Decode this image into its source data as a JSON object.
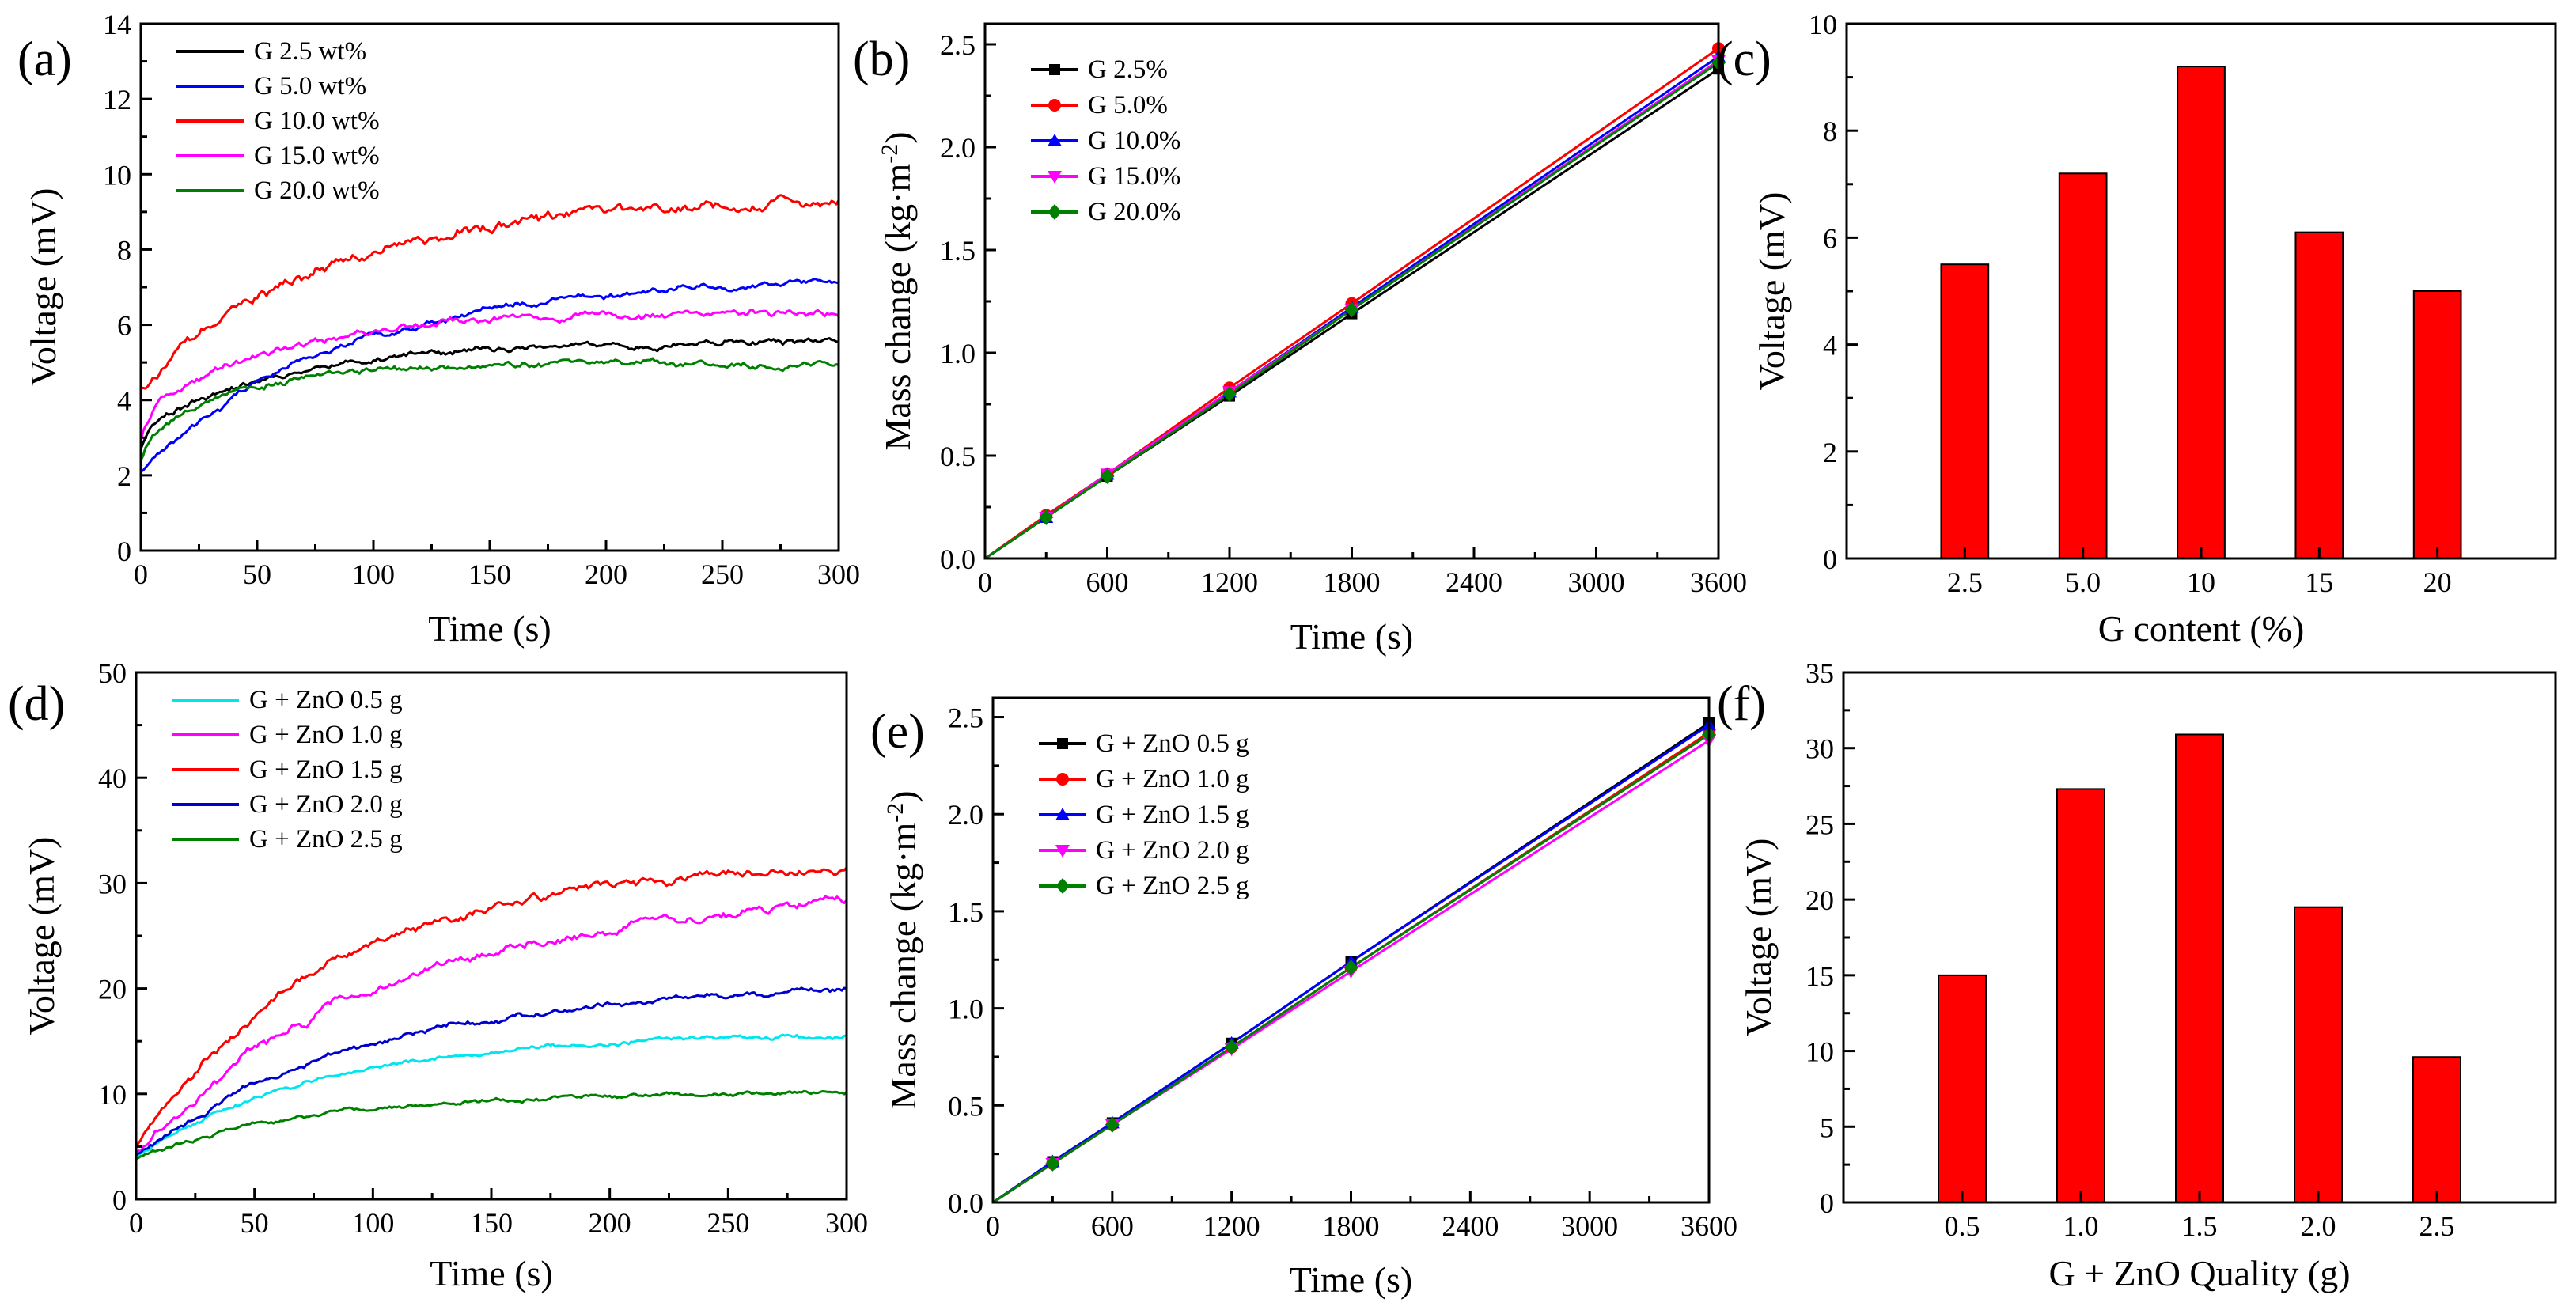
{
  "chart_data": [
    {
      "id": "a",
      "panel_label": "(a)",
      "type": "line",
      "xlabel": "Time (s)",
      "ylabel": "Voltage (mV)",
      "xlim": [
        0,
        300
      ],
      "ylim": [
        0,
        14
      ],
      "xticks": [
        0,
        50,
        100,
        150,
        200,
        250,
        300
      ],
      "yticks": [
        0,
        2,
        4,
        6,
        8,
        10,
        12,
        14
      ],
      "legend_position": "top-left",
      "series": [
        {
          "name": "G 2.5 wt%",
          "color": "#000000",
          "start": 2.7,
          "end": 5.5,
          "tau": 70,
          "kick": 0.6,
          "kick_tau": 3,
          "noise": 0.06,
          "seed": 11
        },
        {
          "name": "G 5.0 wt%",
          "color": "#0000ff",
          "start": 2.1,
          "end": 7.3,
          "tau": 85,
          "kick": 0.0,
          "kick_tau": 3,
          "noise": 0.06,
          "seed": 23
        },
        {
          "name": "G 10.0  wt%",
          "color": "#ff0000",
          "start": 4.3,
          "end": 9.4,
          "tau": 80,
          "kick": 0.0,
          "kick_tau": 3,
          "noise": 0.1,
          "seed": 37
        },
        {
          "name": "G 15.0  wt%",
          "color": "#ff00ff",
          "start": 2.9,
          "end": 6.3,
          "tau": 70,
          "kick": 0.8,
          "kick_tau": 4,
          "noise": 0.07,
          "seed": 41
        },
        {
          "name": "G 20.0  wt%",
          "color": "#008000",
          "start": 2.4,
          "end": 4.9,
          "tau": 55,
          "kick": 0.7,
          "kick_tau": 4,
          "noise": 0.06,
          "seed": 53
        }
      ]
    },
    {
      "id": "b",
      "panel_label": "(b)",
      "type": "line",
      "xlabel": "Time (s)",
      "ylabel": "Mass change (kg·m",
      "ylabel_sup": "-2",
      "ylabel_close": ")",
      "xlim": [
        0,
        3600
      ],
      "ylim": [
        0,
        2.6
      ],
      "xticks": [
        0,
        600,
        1200,
        1800,
        2400,
        3000,
        3600
      ],
      "yticks": [
        0.0,
        0.5,
        1.0,
        1.5,
        2.0,
        2.5
      ],
      "x": [
        0,
        300,
        600,
        1200,
        1800,
        3600
      ],
      "legend_position": "top-left",
      "series": [
        {
          "name": "G 2.5%",
          "color": "#000000",
          "marker": "square",
          "values": [
            0,
            0.2,
            0.4,
            0.79,
            1.19,
            2.38
          ]
        },
        {
          "name": "G 5.0%",
          "color": "#ff0000",
          "marker": "circle",
          "values": [
            0,
            0.21,
            0.41,
            0.83,
            1.24,
            2.48
          ]
        },
        {
          "name": "G 10.0%",
          "color": "#0000ff",
          "marker": "triangle-up",
          "values": [
            0,
            0.2,
            0.41,
            0.81,
            1.22,
            2.44
          ]
        },
        {
          "name": "G 15.0%",
          "color": "#ff00ff",
          "marker": "triangle-down",
          "values": [
            0,
            0.2,
            0.41,
            0.81,
            1.21,
            2.42
          ]
        },
        {
          "name": "G 20.0%",
          "color": "#008000",
          "marker": "diamond",
          "values": [
            0,
            0.2,
            0.4,
            0.8,
            1.21,
            2.41
          ]
        }
      ]
    },
    {
      "id": "c",
      "panel_label": "(c)",
      "type": "bar",
      "xlabel": "G content (%)",
      "ylabel": "Voltage (mV)",
      "ylim": [
        0,
        10
      ],
      "yticks": [
        0,
        2,
        4,
        6,
        8,
        10
      ],
      "categories": [
        "2.5",
        "5.0",
        "10",
        "15",
        "20"
      ],
      "values": [
        5.5,
        7.2,
        9.2,
        6.1,
        5.0
      ],
      "color": "#ff0000"
    },
    {
      "id": "d",
      "panel_label": "(d)",
      "type": "line",
      "xlabel": "Time (s)",
      "ylabel": "Voltage (mV)",
      "xlim": [
        0,
        300
      ],
      "ylim": [
        0,
        50
      ],
      "xticks": [
        0,
        50,
        100,
        150,
        200,
        250,
        300
      ],
      "yticks": [
        0,
        10,
        20,
        30,
        40,
        50
      ],
      "legend_position": "top-left",
      "series": [
        {
          "name": "G + ZnO  0.5 g",
          "color": "#00e5ee",
          "start": 4.0,
          "end": 15.8,
          "tau": 80,
          "kick": 0,
          "kick_tau": 3,
          "noise": 0.15,
          "seed": 61
        },
        {
          "name": "G + ZnO  1.0 g",
          "color": "#ff00ff",
          "start": 4.5,
          "end": 29.5,
          "tau": 105,
          "kick": 0,
          "kick_tau": 3,
          "noise": 0.3,
          "seed": 67
        },
        {
          "name": "G + ZnO  1.5 g",
          "color": "#ff0000",
          "start": 5.0,
          "end": 32.0,
          "tau": 80,
          "kick": 0,
          "kick_tau": 3,
          "noise": 0.3,
          "seed": 71
        },
        {
          "name": "G + ZnO  2.0 g",
          "color": "#0000cd",
          "start": 4.2,
          "end": 20.5,
          "tau": 95,
          "kick": 0,
          "kick_tau": 3,
          "noise": 0.2,
          "seed": 79
        },
        {
          "name": "G + ZnO  2.5 g",
          "color": "#008000",
          "start": 3.8,
          "end": 10.2,
          "tau": 70,
          "kick": 0,
          "kick_tau": 3,
          "noise": 0.15,
          "seed": 83
        }
      ]
    },
    {
      "id": "e",
      "panel_label": "(e)",
      "type": "line",
      "xlabel": "Time (s)",
      "ylabel": "Mass change (kg·m",
      "ylabel_sup": "-2",
      "ylabel_close": ")",
      "xlim": [
        0,
        3600
      ],
      "ylim": [
        0,
        2.6
      ],
      "xticks": [
        0,
        600,
        1200,
        1800,
        2400,
        3000,
        3600
      ],
      "yticks": [
        0.0,
        0.5,
        1.0,
        1.5,
        2.0,
        2.5
      ],
      "x": [
        0,
        300,
        600,
        1200,
        1800,
        3600
      ],
      "legend_position": "top-left",
      "series": [
        {
          "name": "G + ZnO 0.5 g",
          "color": "#000000",
          "marker": "square",
          "values": [
            0,
            0.21,
            0.41,
            0.82,
            1.24,
            2.47
          ]
        },
        {
          "name": "G + ZnO 1.0 g",
          "color": "#ff0000",
          "marker": "circle",
          "values": [
            0,
            0.2,
            0.4,
            0.8,
            1.21,
            2.42
          ]
        },
        {
          "name": "G + ZnO 1.5 g",
          "color": "#0000ff",
          "marker": "triangle-up",
          "values": [
            0,
            0.21,
            0.41,
            0.82,
            1.24,
            2.46
          ]
        },
        {
          "name": "G + ZnO 2.0 g",
          "color": "#ff00ff",
          "marker": "triangle-down",
          "values": [
            0,
            0.2,
            0.4,
            0.79,
            1.19,
            2.38
          ]
        },
        {
          "name": "G + ZnO 2.5 g",
          "color": "#008000",
          "marker": "diamond",
          "values": [
            0,
            0.2,
            0.4,
            0.8,
            1.21,
            2.41
          ]
        }
      ]
    },
    {
      "id": "f",
      "panel_label": "(f)",
      "type": "bar",
      "xlabel": "G + ZnO Quality (g)",
      "ylabel": "Voltage (mV)",
      "ylim": [
        0,
        35
      ],
      "yticks": [
        0,
        5,
        10,
        15,
        20,
        25,
        30,
        35
      ],
      "categories": [
        "0.5",
        "1.0",
        "1.5",
        "2.0",
        "2.5"
      ],
      "values": [
        15.0,
        27.3,
        30.9,
        19.5,
        9.6
      ],
      "color": "#ff0000"
    }
  ]
}
